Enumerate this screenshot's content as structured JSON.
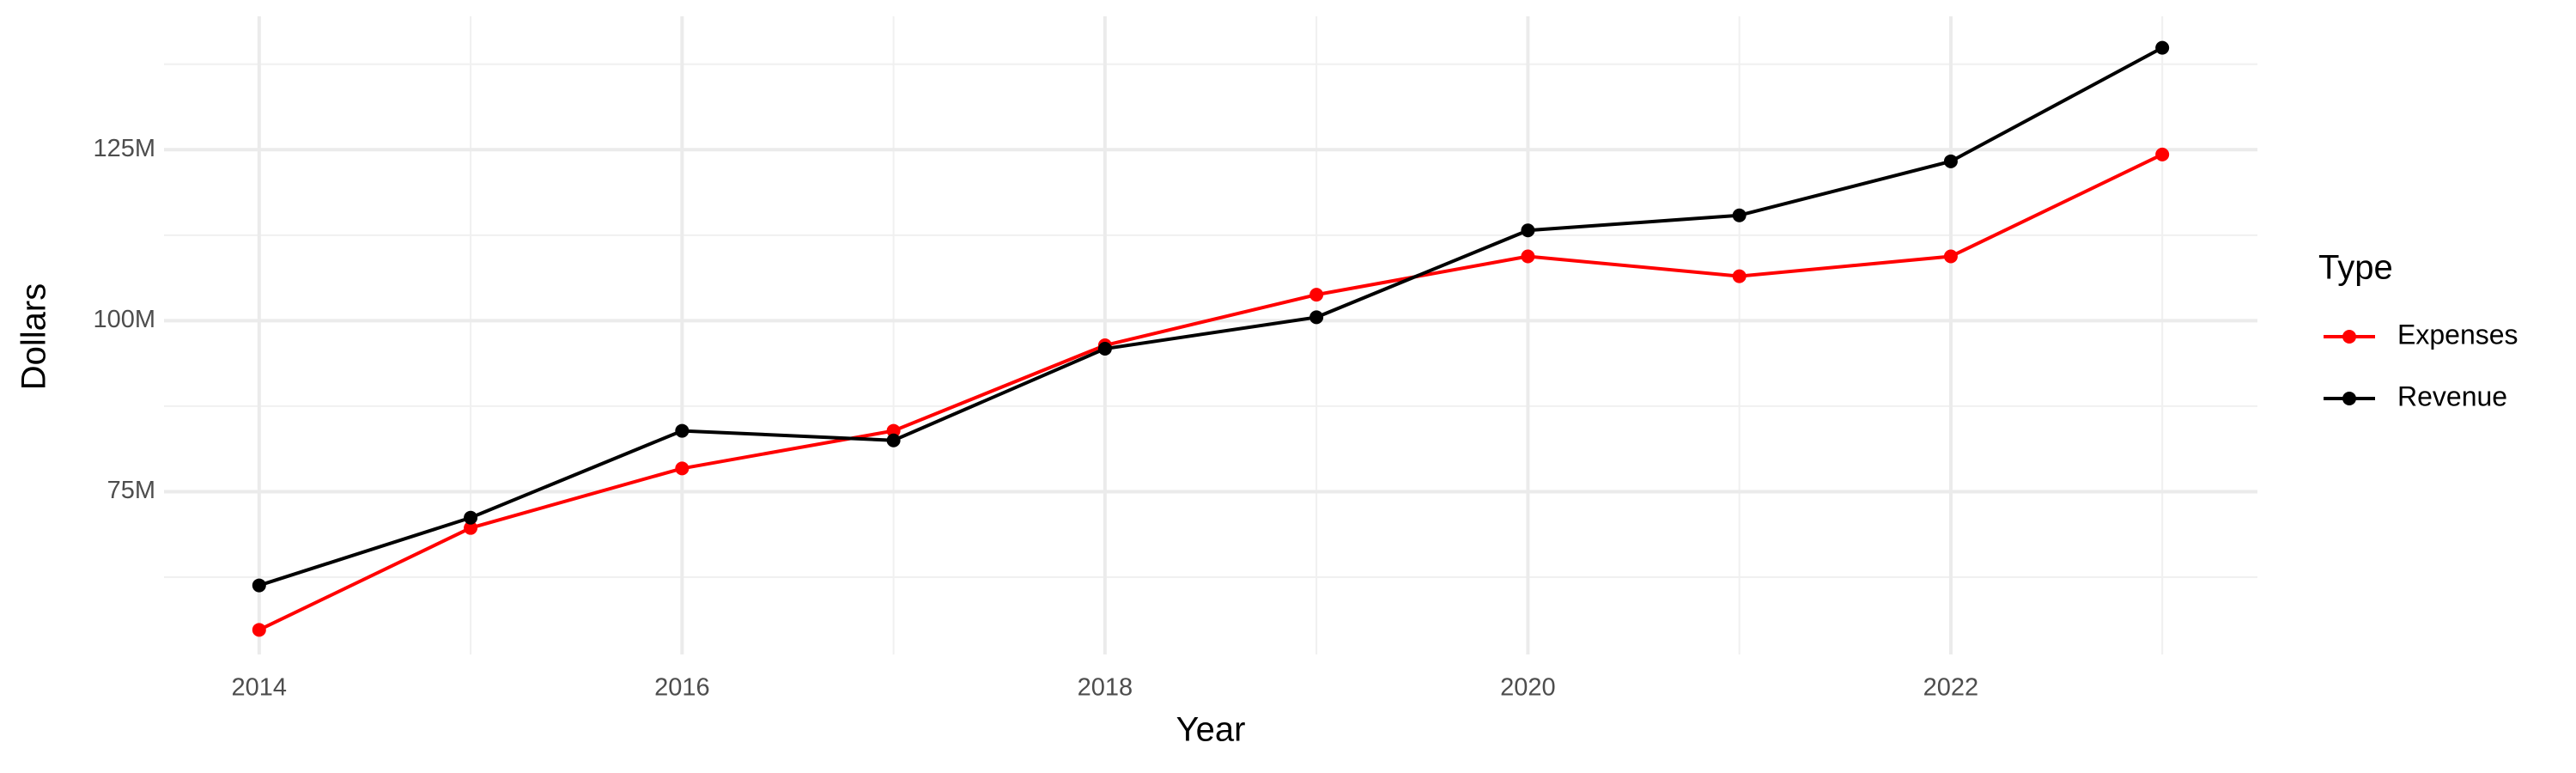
{
  "chart_data": {
    "type": "line",
    "x_label": "Year",
    "y_label": "Dollars",
    "legend_title": "Type",
    "legend": "right",
    "x": [
      2014,
      2015,
      2016,
      2017,
      2018,
      2019,
      2020,
      2021,
      2022,
      2023
    ],
    "series": [
      {
        "name": "Expenses",
        "color": "#ff0000",
        "values": [
          54800000,
          69700000,
          78400000,
          83900000,
          96400000,
          103800000,
          109400000,
          106500000,
          109400000,
          124300000
        ]
      },
      {
        "name": "Revenue",
        "color": "#000000",
        "values": [
          61300000,
          71200000,
          83900000,
          82500000,
          95900000,
          100500000,
          113200000,
          115400000,
          123300000,
          139900000
        ]
      }
    ],
    "xlim": [
      2013.55,
      2023.45
    ],
    "xticks": [
      2014,
      2016,
      2018,
      2020,
      2022
    ],
    "x_minor_ticks": [
      2015,
      2017,
      2019,
      2021,
      2023
    ],
    "ylim": [
      51200000,
      144500000
    ],
    "yticks": [
      {
        "value": 75000000,
        "label": "75M"
      },
      {
        "value": 100000000,
        "label": "100M"
      },
      {
        "value": 125000000,
        "label": "125M"
      }
    ],
    "y_minor_ticks": [
      62500000,
      87500000,
      112500000,
      137500000
    ],
    "grid": true
  }
}
